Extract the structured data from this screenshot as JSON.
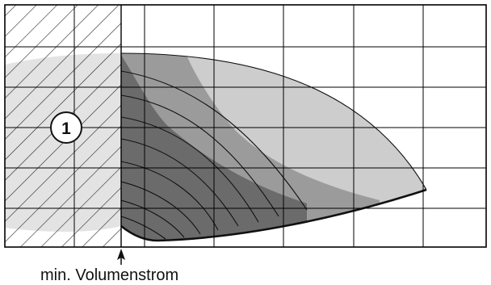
{
  "badge": {
    "label": "1"
  },
  "annotation": {
    "label": "min. Volumenstrom"
  },
  "colors": {
    "grid": "#000000",
    "zone_light": "#cdcdcd",
    "zone_mid": "#9b9b9b",
    "zone_dark": "#6b6b6b",
    "excluded_zone": "#e3e3e3",
    "curve": "#111111"
  },
  "icons": {
    "arrow": "up-arrow-icon",
    "hatch": "diagonal-hatch-pattern"
  }
}
